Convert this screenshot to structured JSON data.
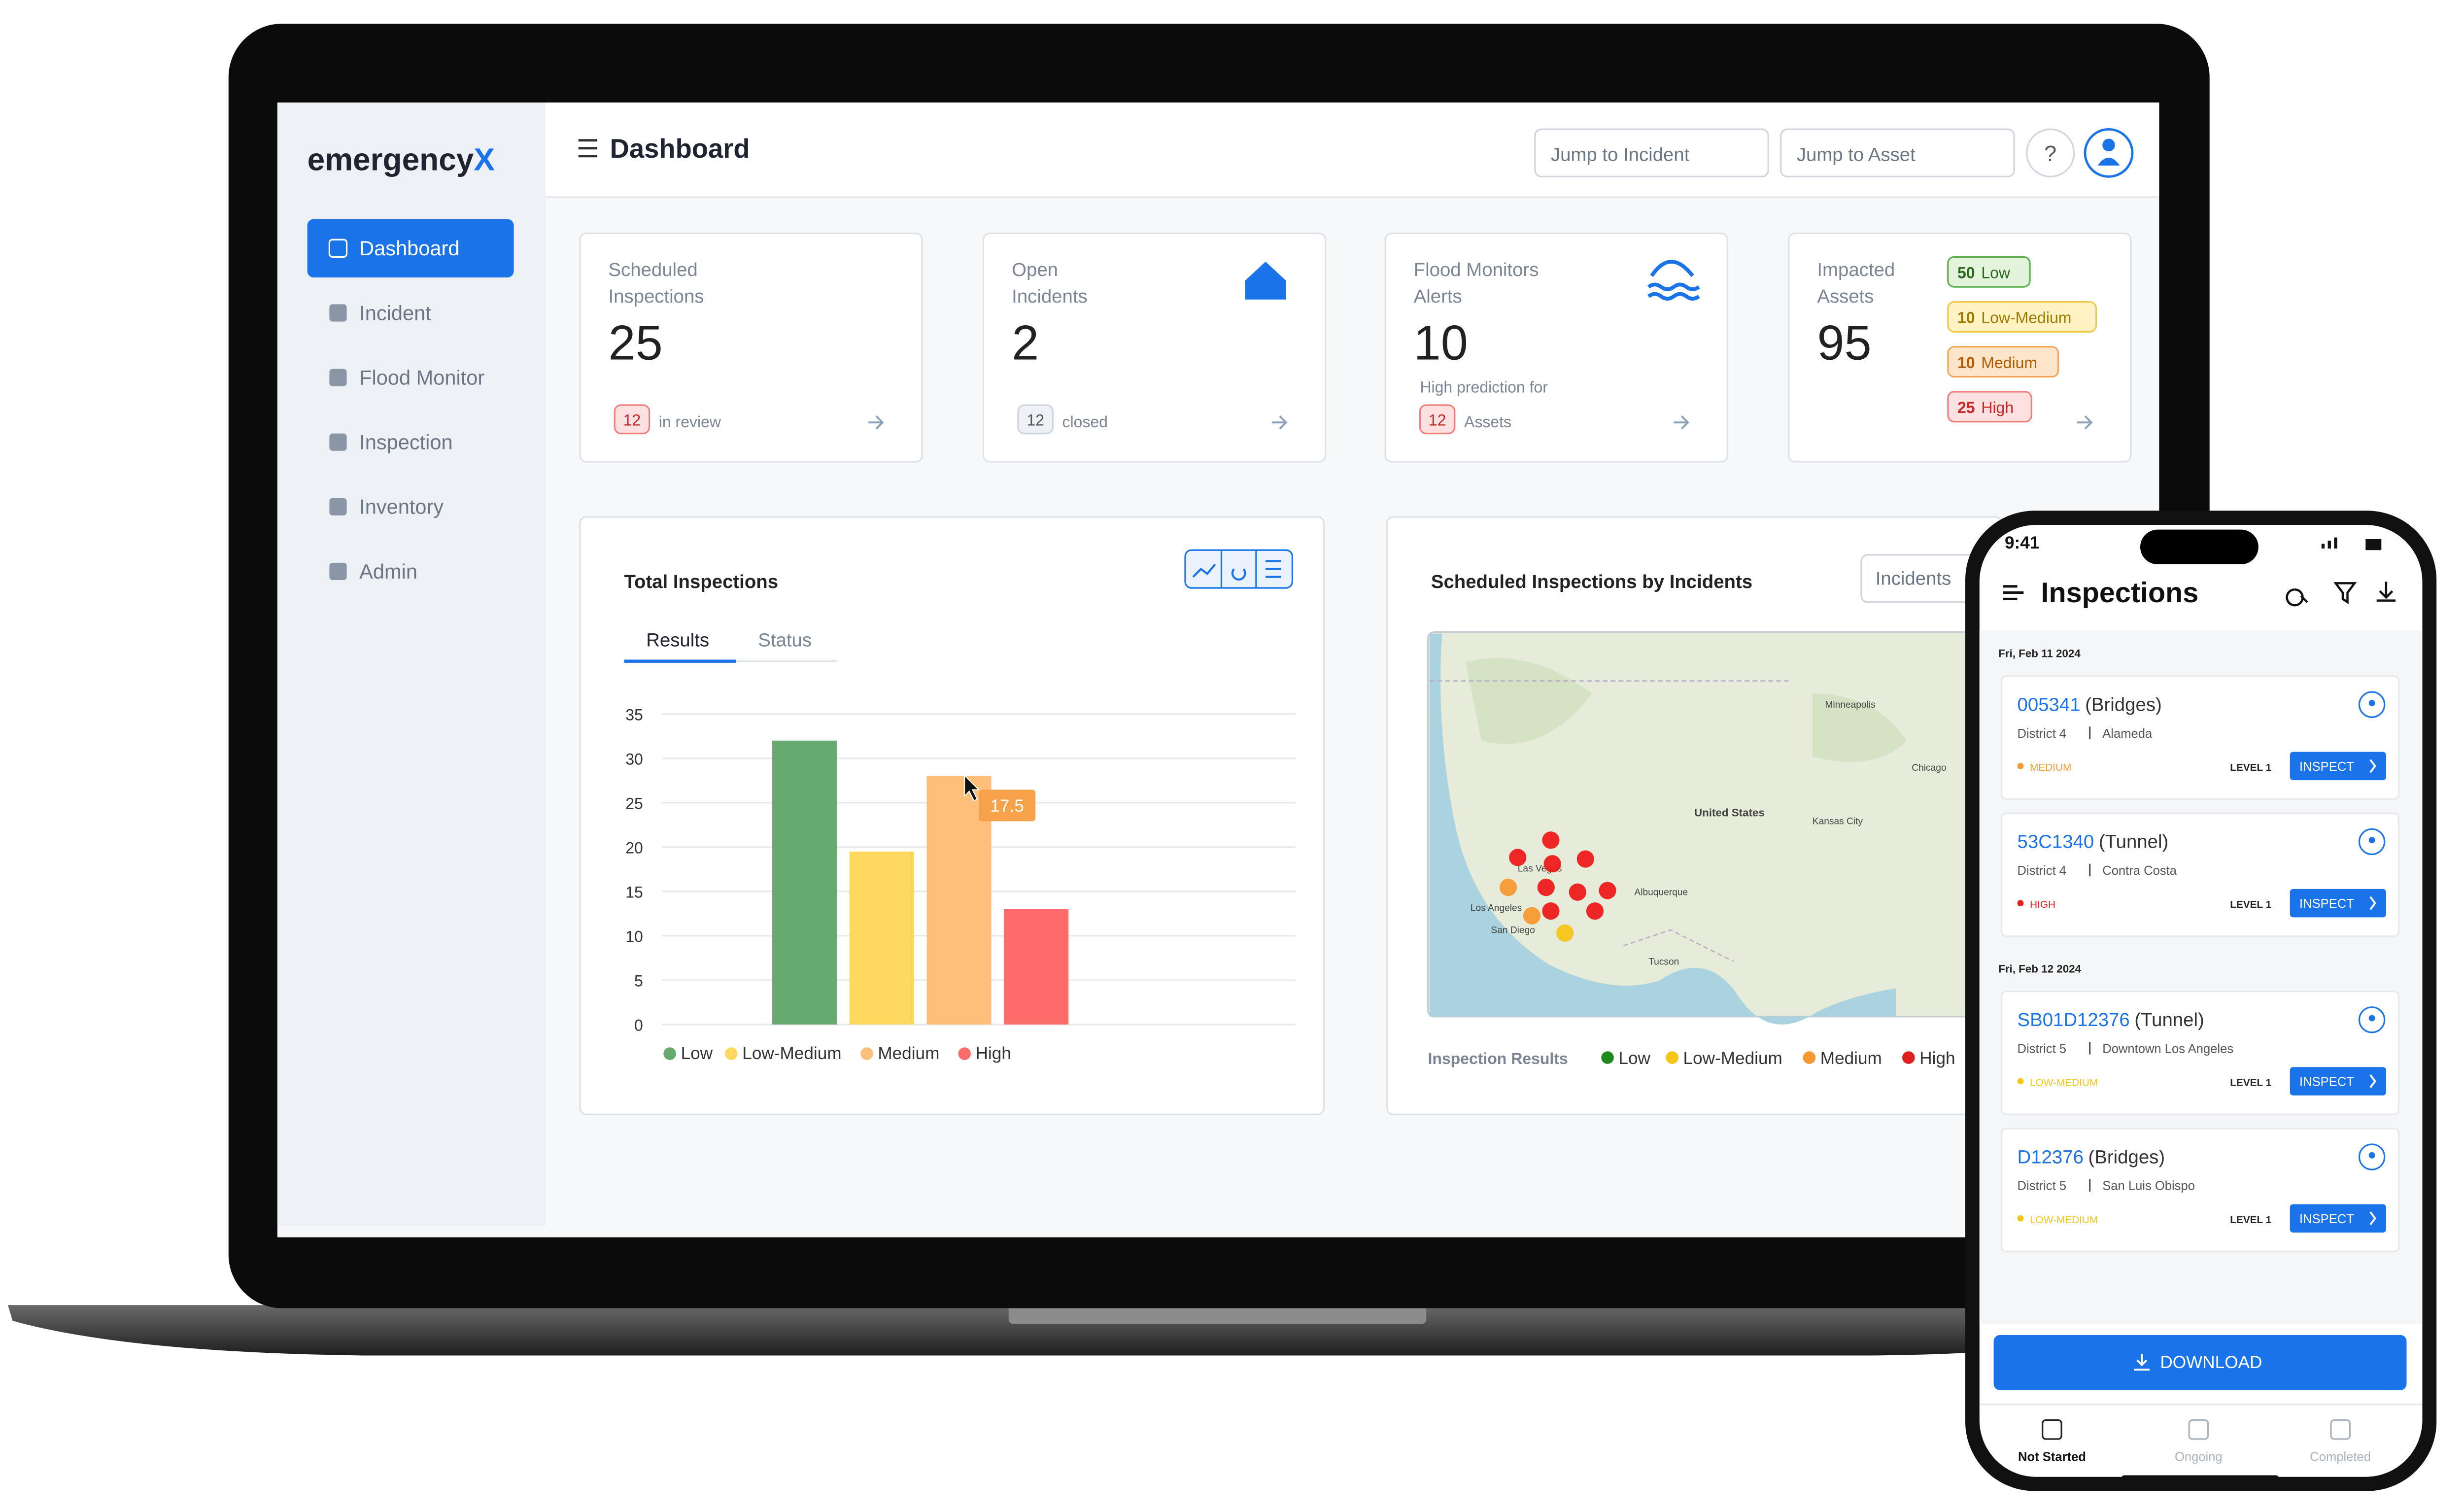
{
  "app": {
    "logo": "emergency",
    "logo_accent": "X",
    "page_title": "Dashboard",
    "search": [
      "Jump to Incident",
      "Jump to Asset"
    ],
    "help": "?",
    "nav": [
      "Dashboard",
      "Incident",
      "Flood Monitor",
      "Inspection",
      "Inventory",
      "Admin"
    ],
    "cards": [
      {
        "label": [
          "Scheduled",
          "Inspections"
        ],
        "value": 25,
        "badge": 12,
        "note": "in review"
      },
      {
        "label": [
          "Open",
          "Incidents"
        ],
        "value": 2,
        "badge": 12,
        "note": "closed"
      },
      {
        "label": [
          "Flood Monitors",
          "Alerts"
        ],
        "value": 10,
        "sub": "High prediction for",
        "badge": 12,
        "note": "Assets"
      },
      {
        "label": [
          "Impacted",
          "Assets"
        ],
        "value": 95,
        "levels": [
          {
            "count": 50,
            "name": "Low"
          },
          {
            "count": 10,
            "name": "Low-Medium"
          },
          {
            "count": 10,
            "name": "Medium"
          },
          {
            "count": 25,
            "name": "High"
          }
        ]
      }
    ],
    "map_panel": {
      "title": "Scheduled Inspections by Incidents",
      "dropdown": "Incidents",
      "legend_title": "Inspection Results",
      "legend": [
        "Low",
        "Low-Medium",
        "Medium",
        "High"
      ],
      "labels": [
        "United States",
        "Las Vegas",
        "Los Angeles",
        "San Diego",
        "Albuquerque",
        "Tucson",
        "Kansas City",
        "Chicago",
        "Minneapolis"
      ]
    }
  },
  "chart_data": {
    "type": "bar",
    "title": "Total Inspections",
    "tabs": [
      "Results",
      "Status"
    ],
    "categories": [
      "Low",
      "Low-Medium",
      "Medium",
      "High"
    ],
    "values": [
      32,
      19.5,
      28,
      13
    ],
    "colors": [
      "#66aa6f",
      "#fdd85d",
      "#fdbf7a",
      "#fd6b6b"
    ],
    "ylim": [
      0,
      35
    ],
    "yticks": [
      0,
      5,
      10,
      15,
      20,
      25,
      30,
      35
    ],
    "grid": true,
    "tooltip": 17.5
  },
  "phone": {
    "time": "9:41",
    "title": "Inspections",
    "groups": [
      {
        "date": "Fri, Feb 11 2024",
        "items": [
          {
            "id": "005341",
            "kind": "(Bridges)",
            "district": "District 4",
            "city": "Alameda",
            "risk": "MEDIUM",
            "level": "LEVEL 1",
            "action": "INSPECT"
          },
          {
            "id": "53C1340",
            "kind": "(Tunnel)",
            "district": "District 4",
            "city": "Contra Costa",
            "risk": "HIGH",
            "level": "LEVEL 1",
            "action": "INSPECT"
          }
        ]
      },
      {
        "date": "Fri, Feb 12 2024",
        "items": [
          {
            "id": "SB01D12376",
            "kind": "(Tunnel)",
            "district": "District 5",
            "city": "Downtown Los Angeles",
            "risk": "LOW-MEDIUM",
            "level": "LEVEL 1",
            "action": "INSPECT"
          },
          {
            "id": "D12376",
            "kind": "(Bridges)",
            "district": "District 5",
            "city": "San Luis Obispo",
            "risk": "LOW-MEDIUM",
            "level": "LEVEL 1",
            "action": "INSPECT"
          }
        ]
      }
    ],
    "download": "DOWNLOAD",
    "tabs": [
      "Not Started",
      "Ongoing",
      "Completed"
    ]
  }
}
